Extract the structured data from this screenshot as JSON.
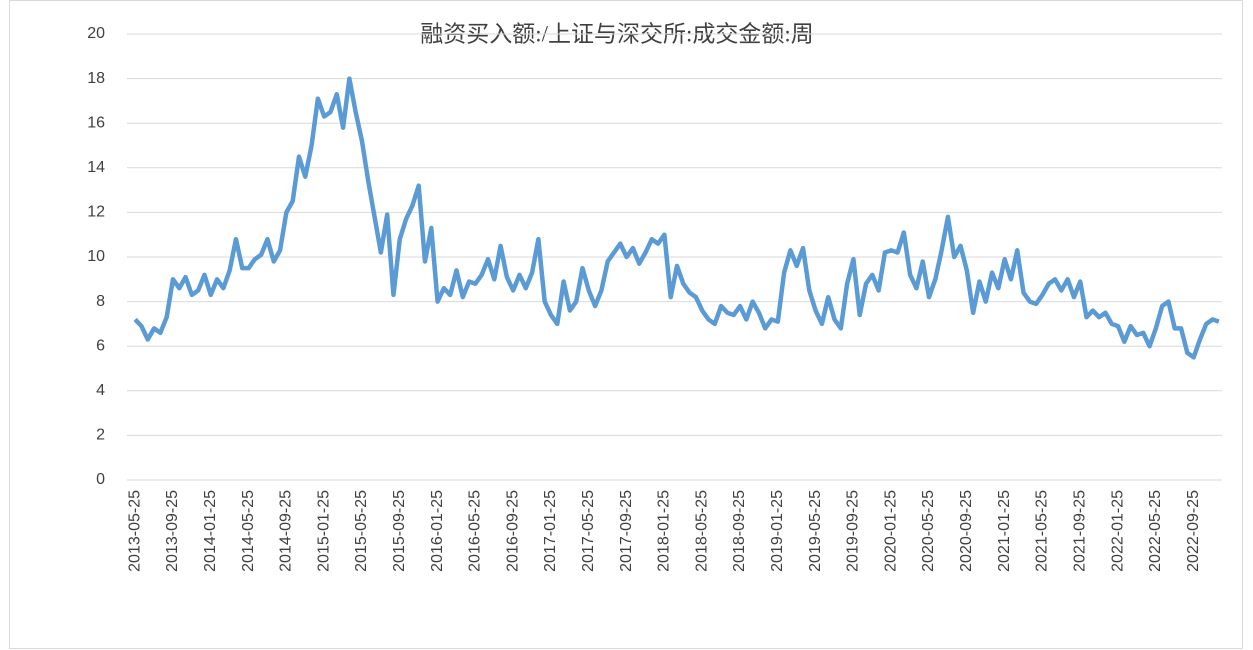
{
  "chart_data": {
    "type": "line",
    "title": "融资买入额:/上证与深交所:成交金额:周",
    "categories": [
      "2013-05-25",
      null,
      null,
      null,
      null,
      null,
      "2013-09-25",
      null,
      null,
      null,
      null,
      null,
      "2014-01-25",
      null,
      null,
      null,
      null,
      null,
      "2014-05-25",
      null,
      null,
      null,
      null,
      null,
      "2014-09-25",
      null,
      null,
      null,
      null,
      null,
      "2015-01-25",
      null,
      null,
      null,
      null,
      null,
      "2015-05-25",
      null,
      null,
      null,
      null,
      null,
      "2015-09-25",
      null,
      null,
      null,
      null,
      null,
      "2016-01-25",
      null,
      null,
      null,
      null,
      null,
      "2016-05-25",
      null,
      null,
      null,
      null,
      null,
      "2016-09-25",
      null,
      null,
      null,
      null,
      null,
      "2017-01-25",
      null,
      null,
      null,
      null,
      null,
      "2017-05-25",
      null,
      null,
      null,
      null,
      null,
      "2017-09-25",
      null,
      null,
      null,
      null,
      null,
      "2018-01-25",
      null,
      null,
      null,
      null,
      null,
      "2018-05-25",
      null,
      null,
      null,
      null,
      null,
      "2018-09-25",
      null,
      null,
      null,
      null,
      null,
      "2019-01-25",
      null,
      null,
      null,
      null,
      null,
      "2019-05-25",
      null,
      null,
      null,
      null,
      null,
      "2019-09-25",
      null,
      null,
      null,
      null,
      null,
      "2020-01-25",
      null,
      null,
      null,
      null,
      null,
      "2020-05-25",
      null,
      null,
      null,
      null,
      null,
      "2020-09-25",
      null,
      null,
      null,
      null,
      null,
      "2021-01-25",
      null,
      null,
      null,
      null,
      null,
      "2021-05-25",
      null,
      null,
      null,
      null,
      null,
      "2021-09-25",
      null,
      null,
      null,
      null,
      null,
      "2022-01-25",
      null,
      null,
      null,
      null,
      null,
      "2022-05-25",
      null,
      null,
      null,
      null,
      null,
      "2022-09-25",
      null,
      null,
      null,
      null
    ],
    "series": [
      {
        "name": "融资买入额:/上证与深交所:成交金额:周",
        "color": "#5b9bd5",
        "values": [
          7.2,
          6.9,
          6.3,
          6.8,
          6.6,
          7.3,
          9.0,
          8.6,
          9.1,
          8.3,
          8.5,
          9.2,
          8.3,
          9.0,
          8.6,
          9.4,
          10.8,
          9.5,
          9.5,
          9.9,
          10.1,
          10.8,
          9.8,
          10.3,
          12.0,
          12.5,
          14.5,
          13.6,
          15.0,
          17.1,
          16.3,
          16.5,
          17.3,
          15.8,
          18.0,
          16.5,
          15.2,
          13.4,
          11.8,
          10.2,
          11.9,
          8.3,
          10.8,
          11.7,
          12.3,
          13.2,
          9.8,
          11.3,
          8.0,
          8.6,
          8.3,
          9.4,
          8.2,
          8.9,
          8.8,
          9.2,
          9.9,
          9.0,
          10.5,
          9.1,
          8.5,
          9.2,
          8.6,
          9.3,
          10.8,
          8.0,
          7.4,
          7.0,
          8.9,
          7.6,
          8.0,
          9.5,
          8.5,
          7.8,
          8.5,
          9.8,
          10.2,
          10.6,
          10.0,
          10.4,
          9.7,
          10.2,
          10.8,
          10.6,
          11.0,
          8.2,
          9.6,
          8.8,
          8.4,
          8.2,
          7.6,
          7.2,
          7.0,
          7.8,
          7.5,
          7.4,
          7.8,
          7.2,
          8.0,
          7.5,
          6.8,
          7.2,
          7.1,
          9.3,
          10.3,
          9.6,
          10.4,
          8.5,
          7.6,
          7.0,
          8.2,
          7.2,
          6.8,
          8.8,
          9.9,
          7.4,
          8.8,
          9.2,
          8.5,
          10.2,
          10.3,
          10.2,
          11.1,
          9.2,
          8.6,
          9.8,
          8.2,
          9.0,
          10.3,
          11.8,
          10.0,
          10.5,
          9.4,
          7.5,
          8.9,
          8.0,
          9.3,
          8.6,
          9.9,
          9.0,
          10.3,
          8.4,
          8.0,
          7.9,
          8.3,
          8.8,
          9.0,
          8.5,
          9.0,
          8.2,
          8.9,
          7.3,
          7.6,
          7.3,
          7.5,
          7.0,
          6.9,
          6.2,
          6.9,
          6.5,
          6.6,
          6.0,
          6.8,
          7.8,
          8.0,
          6.8,
          6.8,
          5.7,
          5.5,
          6.3,
          7.0,
          7.2,
          7.1
        ]
      }
    ],
    "ylim": [
      0,
      20
    ],
    "yticks": [
      0,
      2,
      4,
      6,
      8,
      10,
      12,
      14,
      16,
      18,
      20
    ],
    "grid": true
  }
}
